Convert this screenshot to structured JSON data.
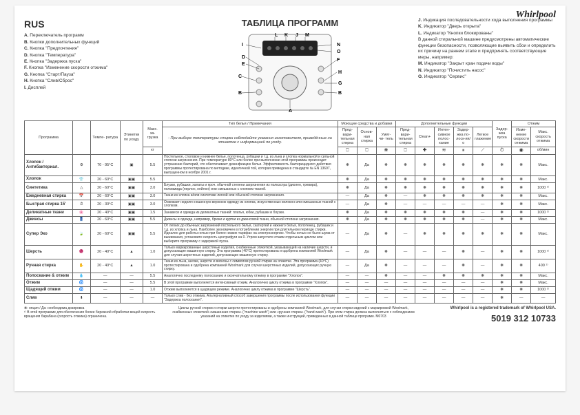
{
  "brand": "Whirlpool",
  "lang": "RUS",
  "title": "ТАБЛИЦА ПРОГРАММ",
  "header_subtitle": "- При выборе температуры стирки соблюдайте указания изготовителя, приведённые на этикетке с информацией по уходу.",
  "legend_left": [
    {
      "k": "A.",
      "t": "Переключатель программ"
    },
    {
      "k": "B.",
      "t": "Кнопки дополнительных функций"
    },
    {
      "k": "C.",
      "t": "Кнопка \"Предпочтения\""
    },
    {
      "k": "D.",
      "t": "Кнопка \"Температура\""
    },
    {
      "k": "E.",
      "t": "Кнопка \"Задержка пуска\""
    },
    {
      "k": "F.",
      "t": "Кнопка \"Изменение скорости отжима\""
    },
    {
      "k": "G.",
      "t": "Кнопка \"Старт/Пауза\""
    },
    {
      "k": "H.",
      "t": "Кнопка \"Слив/Сброс\""
    },
    {
      "k": "I.",
      "t": "Дисплей"
    }
  ],
  "legend_right": [
    {
      "k": "J.",
      "t": "Индикация последовательности хода выполнения программы"
    },
    {
      "k": "K.",
      "t": "Индикатор \"Дверь открыта\""
    },
    {
      "k": "L.",
      "t": "Индикатор \"Кнопки блокированы\""
    },
    {
      "k": "",
      "t": "В данной стиральной машине предусмотрены автоматические функции безопасности, позволяющие выявить сбои и определить их причину на раннем этапе и предпринять соответствующие меры, например:"
    },
    {
      "k": "M.",
      "t": "Индикатор \"Закрыт кран подачи воды\""
    },
    {
      "k": "N.",
      "t": "Индикатор \"Почистить насос\""
    },
    {
      "k": "O.",
      "t": "Индикатор \"Сервис\""
    }
  ],
  "diagram_labels": [
    "L",
    "K",
    "J",
    "M",
    "N",
    "O",
    "D",
    "E",
    "F",
    "G",
    "C",
    "H",
    "B",
    "I",
    "A"
  ],
  "columns": {
    "c1": "Программа",
    "c2": "",
    "c3": "Темпе-\nратура",
    "c4": "Этикетки\nпо уходу",
    "c5": "Макс.\nза-\nгрузка",
    "c5u": "кг",
    "c6": "Тип белья / Примечания",
    "g1": "Моющие средства и добавки",
    "g1a": "Пред-\nвари-\nтельная\nстирка",
    "g1b": "Основ-\nная\nстирка",
    "g1c": "Умяг-\nчи-\nтель",
    "g2": "Дополнительные функции",
    "g2a": "Пред-\nвари-\nтельная\nстирка",
    "g2b": "Clean+",
    "g2c": "Интен-\nсивное\nполос-\nкание",
    "g2d": "Задер-\nжка по-\nлоск-ия/о",
    "g2e": "Легкое\nглажение",
    "g3": "Задер-\nжка\nпуска",
    "g4": "Отжим",
    "g4a": "Изме-\nнение\nскорости\nотжима",
    "g4b": "Макс.\nскорость\nотжима",
    "g4bu": "об/мин"
  },
  "rows": [
    {
      "name": "Хлопок /\nАнтибактериал.",
      "icon": "⚙",
      "temp": "70 - 95°C",
      "care": "▣",
      "load": "5.5",
      "note": "Постельное, столовое и нижнее белье, полотенца, рубашки и т.д. из льна и хлопка нормальной и сильной степени загрязнения. При температуре 80°C или более при выполнении этой программы происходит устранение бактерий, что обеспечивает дезинфекцию белья. Эффективность бактерицидного действия программы протестирована по методике, идентичной той, которая приведена в стандарте № EN 13697, выпущенном в ноябре 2001 г.",
      "pre": "❋",
      "main": "Да",
      "soft": "❋",
      "fpre": "❋",
      "clean": "❋",
      "rins": "❋",
      "hold": "❋",
      "iron": "❋",
      "delay": "❋",
      "spin": "❋",
      "max": "Макс."
    },
    {
      "name": "Хлопок",
      "icon": "👕",
      "temp": "20 - 60°C",
      "care": "▣▣",
      "load": "5.5",
      "note": "",
      "pre": "❋",
      "main": "Да",
      "soft": "❋",
      "fpre": "❋",
      "clean": "❋",
      "rins": "❋",
      "hold": "❋",
      "iron": "❋",
      "delay": "❋",
      "spin": "❋",
      "max": "Макс."
    },
    {
      "name": "Синтетика",
      "icon": "△",
      "temp": "20 - 60°C",
      "care": "▣▣",
      "load": "3.0",
      "note": "Блузки, рубашки, халаты и проч. обычной степени загрязнения из полиэстра (диолен, тревира), полиамида (перлон, нейлон) или смешанных с хлопком тканей.",
      "pre": "❋",
      "main": "Да",
      "soft": "❋",
      "fpre": "❋",
      "clean": "❋",
      "rins": "❋",
      "hold": "❋",
      "iron": "❋",
      "delay": "❋",
      "spin": "❋",
      "max": "1000 ¹⁾"
    },
    {
      "name": "Ежедневная\nстирка",
      "icon": "📅",
      "temp": "20 - 60°C",
      "care": "▣▣",
      "load": "3.0",
      "note": "Ткани из хлопка и/или синтетики легкой или обычной степени загрязнения.",
      "pre": "—",
      "main": "Да",
      "soft": "❋",
      "fpre": "—",
      "clean": "❋",
      "rins": "❋",
      "hold": "❋",
      "iron": "❋",
      "delay": "❋",
      "spin": "❋",
      "max": "Макс."
    },
    {
      "name": "Быстрая стирка\n15'",
      "icon": "⏱",
      "temp": "20 - 30°C",
      "care": "▣▣",
      "load": "3.0",
      "note": "Освежает недолго ношенную верхнюю одежду из хлопка, искусственных волокон или смешанных тканей с хлопком.",
      "pre": "—",
      "main": "Да",
      "soft": "❋",
      "fpre": "—",
      "clean": "—",
      "rins": "—",
      "hold": "—",
      "iron": "—",
      "delay": "❋",
      "spin": "❋",
      "max": "Макс."
    },
    {
      "name": "Деликатные\nткани",
      "icon": "🌸",
      "temp": "20 - 40°C",
      "care": "▣▣",
      "load": "1.5",
      "note": "Занавеси и одежда из деликатных тканей: платья, юбки, рубашки и блузки.",
      "pre": "❋",
      "main": "Да",
      "soft": "❋",
      "fpre": "❋",
      "clean": "❋",
      "rins": "❋",
      "hold": "❋",
      "iron": "—",
      "delay": "❋",
      "spin": "❋",
      "max": "1000 ¹⁾"
    },
    {
      "name": "Джинсы",
      "icon": "👖",
      "temp": "20 - 60°C",
      "care": "▣▣",
      "load": "5.5",
      "note": "Джинсы и одежда, например, брюки и куртки из джинсовой ткани, обычной степени загрязнения.",
      "pre": "❋",
      "main": "Да",
      "soft": "❋",
      "fpre": "❋",
      "clean": "❋",
      "rins": "❋",
      "hold": "❋",
      "iron": "—",
      "delay": "❋",
      "spin": "❋",
      "max": "Макс."
    },
    {
      "name": "Супер Эко",
      "icon": "🍃",
      "temp": "20 - 60°C",
      "care": "▣▣",
      "load": "5.5",
      "note": "От легких до обычных загрязнений постельного белья, скатертей и нижнего белья, полотенец, рубашек и т.д. из хлопка и льна. Наиболее экономичен в потреблении энергии при длительном периоде стирки. Идеален для работы ночью при более низких тарифах на электроэнергию. Чтобы ночью не было шума от выжимания, установите скорость центрифуги на 0. Утром запустите отжим отдельным циклом или выберите программу с задержкой пуска.",
      "pre": "—",
      "main": "Да",
      "soft": "❋",
      "fpre": "—",
      "clean": "❋",
      "rins": "❋",
      "hold": "❋",
      "iron": "❋",
      "delay": "❋",
      "spin": "❋",
      "max": "Макс."
    },
    {
      "name": "Шерсть",
      "icon": "🧶",
      "temp": "20 - 40°C",
      "care": "▲",
      "load": "1.0",
      "note": "Только маркированные шерстяные изделия, снабженные этикеткой, указывающей на наличие шерсти, и допускающие машинную стирку. Эта программа (40°C) протестирована и одобрена компанией Woolmark для случая шерстяных изделий, допускающих машинную стирку.",
      "pre": "—",
      "main": "Да",
      "soft": "❋",
      "fpre": "—",
      "clean": "—",
      "rins": "—",
      "hold": "❋",
      "iron": "—",
      "delay": "❋",
      "spin": "❋",
      "max": "1000 ¹⁾"
    },
    {
      "name": "Ручная стирка",
      "icon": "✋",
      "temp": "20 - 40°C",
      "care": "▲",
      "load": "1.0",
      "note": "Ткани из льна, шелка, шерсти и вискозы с символом ручной стирки на этикетке. Эта программа (40°C) протестирована и одобрена компанией Woolmark для случая шерстяных изделий, допускающих ручную стирку.",
      "pre": "—",
      "main": "Да",
      "soft": "❋",
      "fpre": "—",
      "clean": "—",
      "rins": "—",
      "hold": "❋",
      "iron": "—",
      "delay": "❋",
      "spin": "❋",
      "max": "400 ¹⁾"
    },
    {
      "name": "Полоскание &\nотжим",
      "icon": "💧",
      "temp": "—",
      "care": "—",
      "load": "5.5",
      "note": "Аналогично последнему полосканию и окончательному отжиму в программе \"Хлопок\".",
      "pre": "—",
      "main": "—",
      "soft": "❋",
      "fpre": "—",
      "clean": "—",
      "rins": "❋",
      "hold": "❋",
      "iron": "❋",
      "delay": "❋",
      "spin": "❋",
      "max": "Макс."
    },
    {
      "name": "Отжим",
      "icon": "🌀",
      "temp": "—",
      "care": "—",
      "load": "5.5",
      "note": "В этой программе выполняется интенсивный отжим. Аналогично циклу отжима в программе \"Хлопок\".",
      "pre": "—",
      "main": "—",
      "soft": "—",
      "fpre": "—",
      "clean": "—",
      "rins": "—",
      "hold": "—",
      "iron": "—",
      "delay": "❋",
      "spin": "❋",
      "max": "Макс."
    },
    {
      "name": "Щадящий отжим",
      "icon": "🌀",
      "temp": "—",
      "care": "—",
      "load": "1.0",
      "note": "Отжим выполняется в щадящем режиме. Аналогично циклу отжима в программе \"Шерсть\".",
      "pre": "—",
      "main": "—",
      "soft": "—",
      "fpre": "—",
      "clean": "—",
      "rins": "—",
      "hold": "—",
      "iron": "—",
      "delay": "❋",
      "spin": "❋",
      "max": "1000 ¹⁾"
    },
    {
      "name": "Слив",
      "icon": "⬇",
      "temp": "—",
      "care": "—",
      "load": "—",
      "note": "Только слив - без отжима. Альтернативный способ завершения программы после использования функции \"Задержка полоскания\".",
      "pre": "—",
      "main": "—",
      "soft": "—",
      "fpre": "—",
      "clean": "—",
      "rins": "—",
      "hold": "—",
      "iron": "—",
      "delay": "❋",
      "spin": "—",
      "max": "—"
    }
  ],
  "footnotes": {
    "a": "❋: опция / Да: необходима дозировка",
    "b": "¹⁾ В этой программе для обеспечения более бережной обработки вещей скорость вращения барабана (скорость отжима) ограничена."
  },
  "footer_center": "Циклы ручной стирки и стирки шерсти протестированы и одобрены компанией Woolmark, для случая стирки изделий с маркировкой Woolmark, снабженных этикеткой «машинная стирка» (\"machine wash\") или «ручная стирка» (\"hand wash\"). При этом стирка должна выполняться с соблюдением указаний на этикетке по уходу за изделиями, а также инструкций, приведенных в данной таблице программ.        M0703",
  "footer_right_trademark": "Whirlpool is a registered trademark of Whirlpool USA.",
  "footer_right_partno": "5019 312 10733"
}
